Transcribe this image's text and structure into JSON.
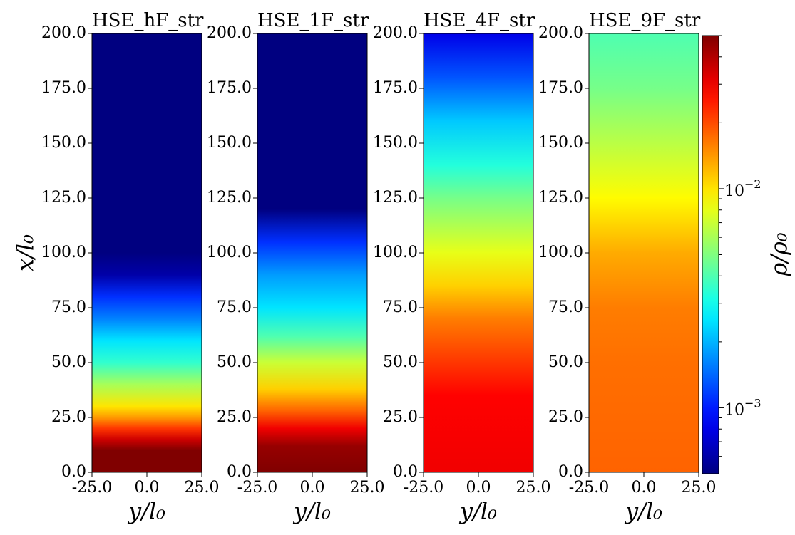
{
  "chart_data": [
    {
      "type": "heatmap",
      "title": "HSE_hF_str",
      "xlabel": "y/l₀",
      "ylabel": "x/l₀",
      "x": [
        0,
        10,
        15,
        20,
        25,
        30,
        40,
        50,
        60,
        70,
        80,
        90,
        100,
        200
      ],
      "values": [
        0.05,
        0.05,
        0.035,
        0.022,
        0.014,
        0.01,
        0.006,
        0.0035,
        0.0025,
        0.0016,
        0.0011,
        0.0006,
        0.0005,
        0.0005
      ],
      "xlim": [
        -25,
        25
      ],
      "xticks": [
        {
          "value": -25,
          "label": "-25.0"
        },
        {
          "value": 0,
          "label": "0.0"
        },
        {
          "value": 25,
          "label": "25.0"
        }
      ],
      "ylim": [
        0,
        200
      ],
      "yticks": [
        {
          "value": 0,
          "label": "0.0"
        },
        {
          "value": 25,
          "label": "25.0"
        },
        {
          "value": 50,
          "label": "50.0"
        },
        {
          "value": 75,
          "label": "75.0"
        },
        {
          "value": 100,
          "label": "100.0"
        },
        {
          "value": 125,
          "label": "125.0"
        },
        {
          "value": 150,
          "label": "150.0"
        },
        {
          "value": 175,
          "label": "175.0"
        },
        {
          "value": 200,
          "label": "200.0"
        }
      ]
    },
    {
      "type": "heatmap",
      "title": "HSE_1F_str",
      "xlabel": "y/l₀",
      "x": [
        0,
        12,
        20,
        28,
        38,
        50,
        62,
        75,
        90,
        105,
        120,
        200
      ],
      "values": [
        0.05,
        0.045,
        0.03,
        0.018,
        0.011,
        0.007,
        0.004,
        0.0025,
        0.0018,
        0.0011,
        0.0005,
        0.0005
      ],
      "xlim": [
        -25,
        25
      ],
      "xticks": [
        {
          "value": -25,
          "label": "-25.0"
        },
        {
          "value": 0,
          "label": "0.0"
        },
        {
          "value": 25,
          "label": "25.0"
        }
      ],
      "ylim": [
        0,
        200
      ],
      "yticks": [
        {
          "value": 0,
          "label": "0.0"
        },
        {
          "value": 25,
          "label": "25.0"
        },
        {
          "value": 50,
          "label": "50.0"
        },
        {
          "value": 75,
          "label": "75.0"
        },
        {
          "value": 100,
          "label": "100.0"
        },
        {
          "value": 125,
          "label": "125.0"
        },
        {
          "value": 150,
          "label": "150.0"
        },
        {
          "value": 175,
          "label": "175.0"
        },
        {
          "value": 200,
          "label": "200.0"
        }
      ]
    },
    {
      "type": "heatmap",
      "title": "HSE_4F_str",
      "xlabel": "y/l₀",
      "x": [
        0,
        35,
        50,
        70,
        85,
        100,
        125,
        140,
        160,
        180,
        200
      ],
      "values": [
        0.03,
        0.028,
        0.022,
        0.016,
        0.011,
        0.008,
        0.0048,
        0.0033,
        0.0022,
        0.0013,
        0.0008
      ],
      "xlim": [
        -25,
        25
      ],
      "xticks": [
        {
          "value": -25,
          "label": "-25.0"
        },
        {
          "value": 0,
          "label": "0.0"
        },
        {
          "value": 25,
          "label": "25.0"
        }
      ],
      "ylim": [
        0,
        200
      ],
      "yticks": [
        {
          "value": 0,
          "label": "0.0"
        },
        {
          "value": 25,
          "label": "25.0"
        },
        {
          "value": 50,
          "label": "50.0"
        },
        {
          "value": 75,
          "label": "75.0"
        },
        {
          "value": 100,
          "label": "100.0"
        },
        {
          "value": 125,
          "label": "125.0"
        },
        {
          "value": 150,
          "label": "150.0"
        },
        {
          "value": 175,
          "label": "175.0"
        },
        {
          "value": 200,
          "label": "200.0"
        }
      ]
    },
    {
      "type": "heatmap",
      "title": "HSE_9F_str",
      "xlabel": "y/l₀",
      "x": [
        0,
        50,
        75,
        100,
        125,
        150,
        175,
        200
      ],
      "values": [
        0.018,
        0.017,
        0.016,
        0.013,
        0.009,
        0.0065,
        0.0048,
        0.004
      ],
      "xlim": [
        -25,
        25
      ],
      "xticks": [
        {
          "value": -25,
          "label": "-25.0"
        },
        {
          "value": 0,
          "label": "0.0"
        },
        {
          "value": 25,
          "label": "25.0"
        }
      ],
      "ylim": [
        0,
        200
      ],
      "yticks": [
        {
          "value": 0,
          "label": "0.0"
        },
        {
          "value": 25,
          "label": "25.0"
        },
        {
          "value": 50,
          "label": "50.0"
        },
        {
          "value": 75,
          "label": "75.0"
        },
        {
          "value": 100,
          "label": "100.0"
        },
        {
          "value": 125,
          "label": "125.0"
        },
        {
          "value": 150,
          "label": "150.0"
        },
        {
          "value": 175,
          "label": "175.0"
        },
        {
          "value": 200,
          "label": "200.0"
        }
      ]
    }
  ],
  "colorbar": {
    "label": "ρ/ρ₀",
    "colormap": "jet",
    "log": true,
    "clim": [
      0.0005,
      0.05
    ],
    "ticks": [
      {
        "value": 0.001,
        "label": "10",
        "exponent": "−3"
      },
      {
        "value": 0.01,
        "label": "10",
        "exponent": "−2"
      }
    ],
    "minor_ticks": [
      0.0006,
      0.0007,
      0.0008,
      0.0009,
      0.002,
      0.003,
      0.004,
      0.005,
      0.006,
      0.007,
      0.008,
      0.009,
      0.02,
      0.03,
      0.04,
      0.05
    ]
  }
}
